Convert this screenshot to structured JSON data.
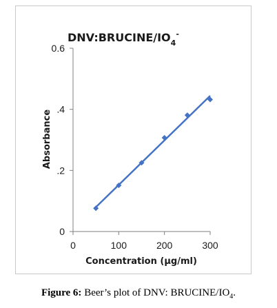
{
  "chart_data": {
    "type": "scatter",
    "title": "DNV:BRUCINE/IO",
    "title_subscript": "4",
    "title_superscript": "-",
    "xlabel": "Concentration (µg/ml)",
    "ylabel": "Absorbance",
    "xlim": [
      0,
      300
    ],
    "ylim": [
      0,
      0.6
    ],
    "x_ticks": [
      "0",
      "100",
      "200",
      "300"
    ],
    "y_ticks": [
      "0",
      ".2",
      ".4",
      "0.6"
    ],
    "grid": false,
    "legend": "none",
    "trendline": "linear",
    "series": [
      {
        "x": [
          50,
          100,
          150,
          200,
          250,
          300
        ],
        "y": [
          0.076,
          0.151,
          0.225,
          0.307,
          0.381,
          0.432
        ]
      }
    ],
    "colors": {
      "series": "#4472c4",
      "axis": "#7f7f7f"
    }
  },
  "caption": {
    "label": "Figure 6:",
    "text": "Beer’s plot of DNV: BRUCINE/IO",
    "subscript": "4",
    "end": "."
  }
}
